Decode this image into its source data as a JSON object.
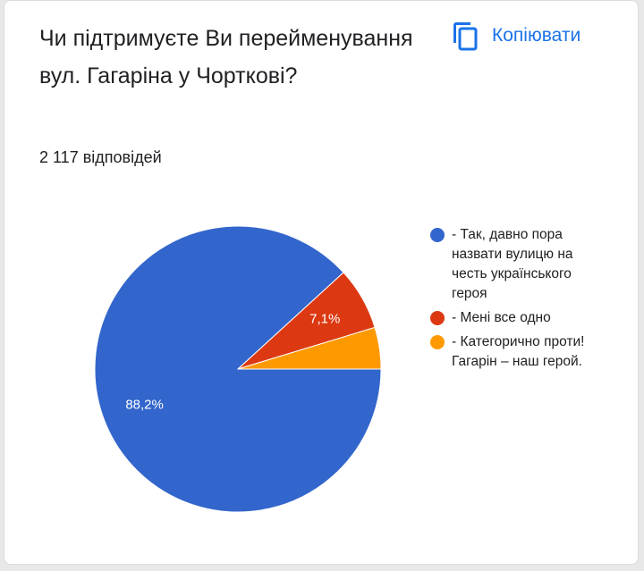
{
  "chart_data": {
    "type": "pie",
    "title": "Чи підтримуєте Ви перейменування вул. Гагаріна у Чорткові?",
    "subtitle": "2 117 відповідей",
    "button": "Копіювати",
    "categories": [
      "- Так, давно пора назвати вулицю на честь українського героя",
      "- Мені все одно",
      "- Категорично проти! Гагарін – наш герой."
    ],
    "values": [
      88.2,
      7.1,
      4.7
    ],
    "value_labels": [
      "88,2%",
      "7,1%",
      null
    ],
    "colors": [
      "#3366cc",
      "#dc3912",
      "#ff9900"
    ]
  }
}
